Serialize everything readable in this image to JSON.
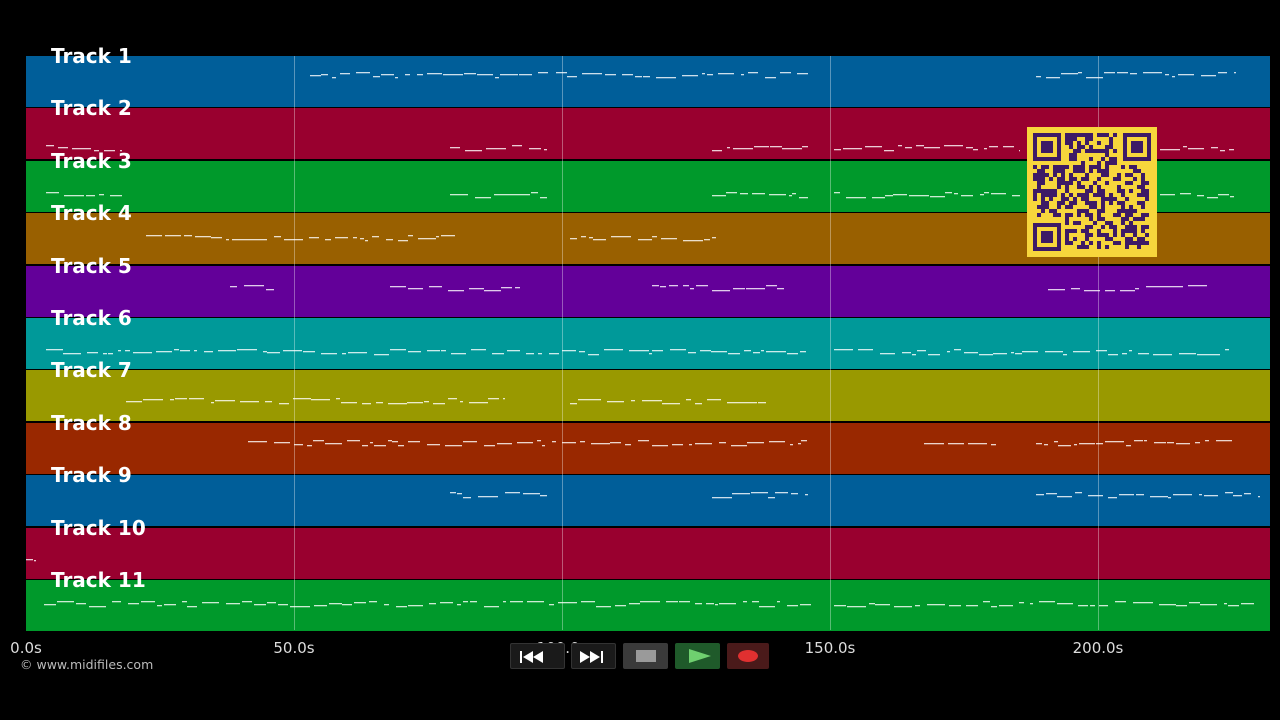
{
  "tracks": [
    {
      "label": "Track 1",
      "color": "#005e99"
    },
    {
      "label": "Track 2",
      "color": "#99002f"
    },
    {
      "label": "Track 3",
      "color": "#00992b"
    },
    {
      "label": "Track 4",
      "color": "#996000"
    },
    {
      "label": "Track 5",
      "color": "#630099"
    },
    {
      "label": "Track 6",
      "color": "#009999"
    },
    {
      "label": "Track 7",
      "color": "#999900"
    },
    {
      "label": "Track 8",
      "color": "#992800"
    },
    {
      "label": "Track 9",
      "color": "#005e99"
    },
    {
      "label": "Track 10",
      "color": "#99002f"
    },
    {
      "label": "Track 11",
      "color": "#00992b"
    }
  ],
  "timeline": {
    "ticks": [
      "0.0s",
      "50.0s",
      "100.0s",
      "150.0s",
      "200.0s"
    ]
  },
  "copyright": "© www.midifiles.com",
  "transport": {
    "rewind_icon": "rewind-icon",
    "fastforward_icon": "fast-forward-icon",
    "stop_icon": "stop-icon",
    "play_icon": "play-icon",
    "record_icon": "record-icon"
  },
  "overlay": {
    "qr_icon": "qr-code-icon",
    "qr_color": "#f7d63c",
    "qr_dark": "#3d1a66"
  }
}
